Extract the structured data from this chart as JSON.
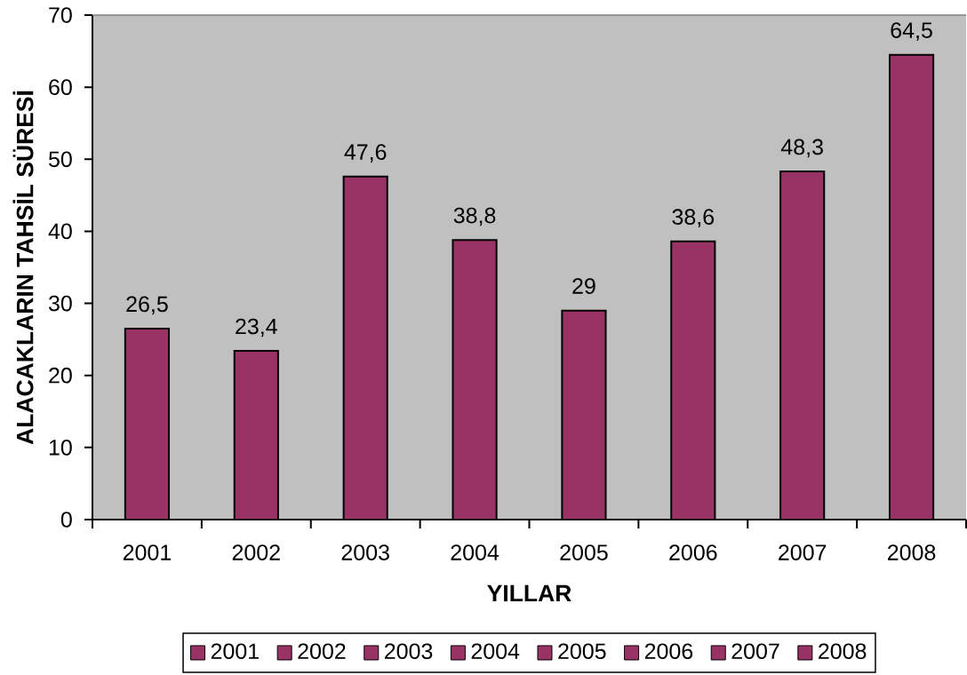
{
  "chart_data": {
    "type": "bar",
    "stacked": true,
    "xlabel": "YILLAR",
    "ylabel": "ALACAKLARIN TAHSİL SÜRESİ",
    "categories": [
      "2001",
      "2002",
      "2003",
      "2004",
      "2005",
      "2006",
      "2007",
      "2008"
    ],
    "series": [
      {
        "name": "2001",
        "color": "#993366",
        "values": [
          26.5,
          null,
          null,
          null,
          null,
          null,
          null,
          null
        ],
        "value_labels": [
          "26,5",
          null,
          null,
          null,
          null,
          null,
          null,
          null
        ]
      },
      {
        "name": "2002",
        "color": "#993366",
        "values": [
          null,
          23.4,
          null,
          null,
          null,
          null,
          null,
          null
        ],
        "value_labels": [
          null,
          "23,4",
          null,
          null,
          null,
          null,
          null,
          null
        ]
      },
      {
        "name": "2003",
        "color": "#993366",
        "values": [
          null,
          null,
          47.6,
          null,
          null,
          null,
          null,
          null
        ],
        "value_labels": [
          null,
          null,
          "47,6",
          null,
          null,
          null,
          null,
          null
        ]
      },
      {
        "name": "2004",
        "color": "#993366",
        "values": [
          null,
          null,
          null,
          38.8,
          null,
          null,
          null,
          null
        ],
        "value_labels": [
          null,
          null,
          null,
          "38,8",
          null,
          null,
          null,
          null
        ]
      },
      {
        "name": "2005",
        "color": "#993366",
        "values": [
          null,
          null,
          null,
          null,
          29,
          null,
          null,
          null
        ],
        "value_labels": [
          null,
          null,
          null,
          null,
          "29",
          null,
          null,
          null
        ]
      },
      {
        "name": "2006",
        "color": "#993366",
        "values": [
          null,
          null,
          null,
          null,
          null,
          38.6,
          null,
          null
        ],
        "value_labels": [
          null,
          null,
          null,
          null,
          null,
          "38,6",
          null,
          null
        ]
      },
      {
        "name": "2007",
        "color": "#993366",
        "values": [
          null,
          null,
          null,
          null,
          null,
          null,
          48.3,
          null
        ],
        "value_labels": [
          null,
          null,
          null,
          null,
          null,
          null,
          "48,3",
          null
        ]
      },
      {
        "name": "2008",
        "color": "#993366",
        "values": [
          null,
          null,
          null,
          null,
          null,
          null,
          null,
          64.5
        ],
        "value_labels": [
          null,
          null,
          null,
          null,
          null,
          null,
          null,
          "64,5"
        ]
      }
    ],
    "ylim": [
      0,
      70
    ],
    "yticks": [
      0,
      10,
      20,
      30,
      40,
      50,
      60,
      70
    ],
    "legend": "bottom"
  }
}
